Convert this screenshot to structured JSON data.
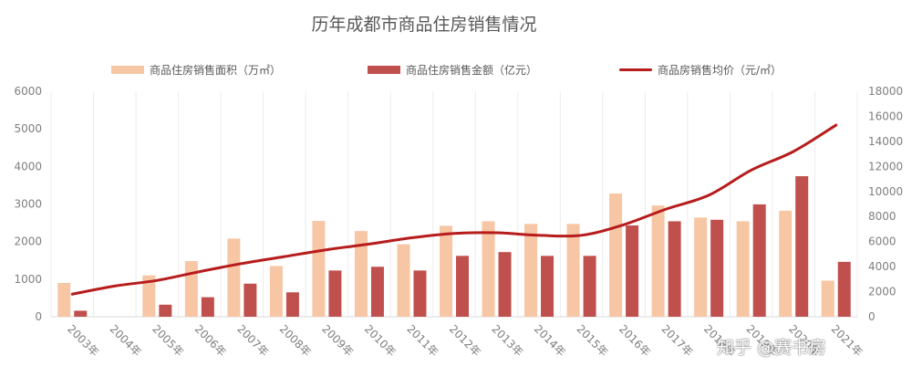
{
  "watermark": "知乎 @赛书房",
  "chart_data": {
    "type": "bar+line",
    "title": "历年成都市商品住房销售情况",
    "categories": [
      "2003年",
      "2004年",
      "2005年",
      "2006年",
      "2007年",
      "2008年",
      "2009年",
      "2010年",
      "2011年",
      "2012年",
      "2013年",
      "2014年",
      "2015年",
      "2016年",
      "2017年",
      "2018年",
      "2019年",
      "2020年",
      "2021年"
    ],
    "series": [
      {
        "name": "商品住房销售面积（万㎡）",
        "type": "bar",
        "axis": "left",
        "color": "#f7c6a5",
        "values": [
          900,
          null,
          1100,
          1480,
          2080,
          1350,
          2550,
          2280,
          1930,
          2420,
          2540,
          2470,
          2470,
          3280,
          2960,
          2640,
          2540,
          2820,
          960
        ]
      },
      {
        "name": "商品住房销售金额（亿元）",
        "type": "bar",
        "axis": "left",
        "color": "#c0504d",
        "values": [
          160,
          null,
          320,
          520,
          880,
          650,
          1230,
          1330,
          1230,
          1620,
          1720,
          1620,
          1620,
          2430,
          2540,
          2580,
          2990,
          3740,
          1460
        ]
      },
      {
        "name": "商品房销售均价（元/㎡）",
        "type": "line",
        "axis": "right",
        "color": "#b71c1c",
        "values": [
          1800,
          2450,
          2900,
          3600,
          4250,
          4800,
          5350,
          5800,
          6300,
          6650,
          6700,
          6500,
          6500,
          7350,
          8600,
          9700,
          11700,
          13200,
          15300
        ]
      }
    ],
    "y_left": {
      "min": 0,
      "max": 6000,
      "ticks": [
        0,
        1000,
        2000,
        3000,
        4000,
        5000,
        6000
      ]
    },
    "y_right": {
      "min": 0,
      "max": 18000,
      "ticks": [
        0,
        2000,
        4000,
        6000,
        8000,
        10000,
        12000,
        14000,
        16000,
        18000
      ]
    },
    "legend_position": "top",
    "grid": "vertical"
  }
}
